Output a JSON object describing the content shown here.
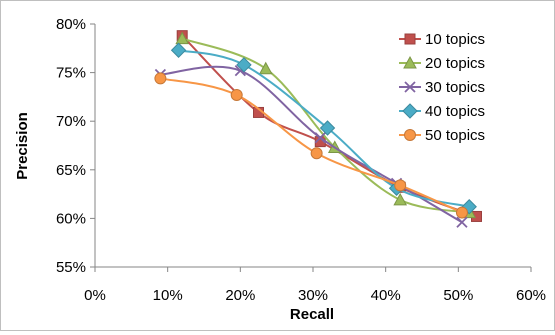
{
  "chart_data": {
    "type": "line",
    "title": "",
    "xlabel": "Recall",
    "ylabel": "Precision",
    "xlim": [
      0,
      60
    ],
    "ylim": [
      55,
      80
    ],
    "x_ticks": [
      0,
      10,
      20,
      30,
      40,
      50,
      60
    ],
    "y_ticks": [
      55,
      60,
      65,
      70,
      75,
      80
    ],
    "x_tick_labels": [
      "0%",
      "10%",
      "20%",
      "30%",
      "40%",
      "50%",
      "60%"
    ],
    "y_tick_labels": [
      "55%",
      "60%",
      "65%",
      "70%",
      "75%",
      "80%"
    ],
    "grid": false,
    "legend_position": "top-right",
    "series": [
      {
        "name": "10 topics",
        "color": "#c0504d",
        "marker": "square",
        "points": [
          [
            12,
            78.8
          ],
          [
            22.5,
            70.9
          ],
          [
            31,
            67.9
          ],
          [
            42,
            63.2
          ],
          [
            52.5,
            60.2
          ]
        ]
      },
      {
        "name": "20 topics",
        "color": "#9bbb59",
        "marker": "triangle",
        "points": [
          [
            12,
            78.5
          ],
          [
            23.5,
            75.4
          ],
          [
            33,
            67.3
          ],
          [
            42,
            61.9
          ],
          [
            51.5,
            60.6
          ]
        ]
      },
      {
        "name": "30 topics",
        "color": "#8064a2",
        "marker": "x",
        "points": [
          [
            9,
            74.8
          ],
          [
            20,
            75.2
          ],
          [
            31,
            68.3
          ],
          [
            41.5,
            63.6
          ],
          [
            50.5,
            59.6
          ]
        ]
      },
      {
        "name": "40 topics",
        "color": "#4bacc6",
        "marker": "diamond",
        "points": [
          [
            11.5,
            77.3
          ],
          [
            20.5,
            75.8
          ],
          [
            32,
            69.3
          ],
          [
            41.5,
            63.1
          ],
          [
            51.5,
            61.2
          ]
        ]
      },
      {
        "name": "50 topics",
        "color": "#f79646",
        "marker": "circle",
        "points": [
          [
            9,
            74.4
          ],
          [
            19.5,
            72.7
          ],
          [
            30.5,
            66.7
          ],
          [
            42,
            63.4
          ],
          [
            50.5,
            60.6
          ]
        ]
      }
    ]
  }
}
